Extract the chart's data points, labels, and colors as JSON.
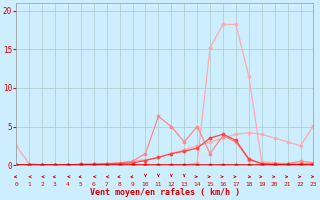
{
  "x": [
    0,
    1,
    2,
    3,
    4,
    5,
    6,
    7,
    8,
    9,
    10,
    11,
    12,
    13,
    14,
    15,
    16,
    17,
    18,
    19,
    20,
    21,
    22,
    23
  ],
  "line_pale_peak": [
    0.0,
    0.0,
    0.0,
    0.0,
    0.0,
    0.0,
    0.0,
    0.0,
    0.0,
    0.0,
    0.0,
    0.0,
    0.0,
    0.0,
    0.3,
    15.2,
    18.2,
    18.2,
    11.5,
    0.4,
    0.3,
    0.2,
    0.2,
    0.2
  ],
  "line_pale_slope": [
    2.5,
    0.2,
    0.05,
    0.05,
    0.05,
    0.1,
    0.15,
    0.2,
    0.3,
    0.5,
    0.7,
    1.0,
    1.5,
    2.0,
    2.5,
    3.0,
    3.5,
    4.0,
    4.2,
    4.0,
    3.5,
    3.0,
    2.5,
    5.1
  ],
  "line_mid_wavy": [
    0.0,
    0.0,
    0.0,
    0.0,
    0.0,
    0.1,
    0.1,
    0.2,
    0.3,
    0.5,
    1.5,
    6.3,
    5.0,
    3.0,
    5.0,
    1.5,
    3.8,
    3.0,
    0.7,
    0.2,
    0.1,
    0.2,
    0.5,
    0.3
  ],
  "line_dark_bumpy": [
    0.0,
    0.0,
    0.0,
    0.05,
    0.05,
    0.1,
    0.1,
    0.15,
    0.2,
    0.3,
    0.6,
    1.0,
    1.5,
    1.8,
    2.2,
    3.5,
    4.0,
    3.2,
    0.8,
    0.2,
    0.1,
    0.1,
    0.1,
    0.1
  ],
  "line_flat_zero": [
    0.0,
    0.0,
    0.0,
    0.0,
    0.0,
    0.0,
    0.0,
    0.0,
    0.0,
    0.0,
    0.0,
    0.0,
    0.0,
    0.0,
    0.0,
    0.0,
    0.0,
    0.0,
    0.0,
    0.0,
    0.0,
    0.0,
    0.0,
    0.0
  ],
  "bg_color": "#cceeff",
  "grid_color": "#aacccc",
  "color_pale": "#ffaaaa",
  "color_mid": "#ff8888",
  "color_dark": "#ff4444",
  "color_red": "#dd0000",
  "xlabel": "Vent moyen/en rafales ( km/h )",
  "ylim": [
    0,
    21
  ],
  "xlim": [
    0,
    23
  ],
  "yticks": [
    0,
    5,
    10,
    15,
    20
  ],
  "xticks": [
    0,
    1,
    2,
    3,
    4,
    5,
    6,
    7,
    8,
    9,
    10,
    11,
    12,
    13,
    14,
    15,
    16,
    17,
    18,
    19,
    20,
    21,
    22,
    23
  ],
  "wind_dirs": [
    225,
    270,
    270,
    225,
    270,
    225,
    270,
    270,
    225,
    225,
    180,
    180,
    180,
    180,
    90,
    90,
    90,
    90,
    135,
    90,
    90,
    90,
    90,
    90
  ]
}
